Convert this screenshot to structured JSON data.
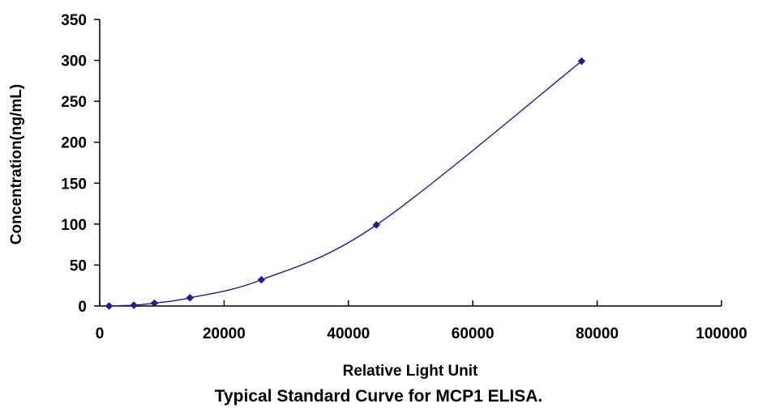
{
  "caption": "Typical Standard Curve for MCP1 ELISA.",
  "colors": {
    "series": "#1f1f8c",
    "axis": "#000000",
    "background": "#ffffff"
  },
  "chart_data": {
    "type": "scatter",
    "title": "",
    "xlabel": "Relative Light Unit",
    "ylabel": "Concentration(ng/mL)",
    "xlim": [
      0,
      100000
    ],
    "ylim": [
      0,
      350
    ],
    "x_ticks": [
      0,
      20000,
      40000,
      60000,
      80000,
      100000
    ],
    "y_ticks": [
      0,
      50,
      100,
      150,
      200,
      250,
      300,
      350
    ],
    "x_tick_labels": [
      "0",
      "20000",
      "40000",
      "60000",
      "80000",
      "100000"
    ],
    "y_tick_labels": [
      "0",
      "50",
      "100",
      "150",
      "200",
      "250",
      "300",
      "350"
    ],
    "grid": false,
    "legend": "none",
    "series": [
      {
        "marker": "diamond",
        "line": "smooth",
        "x": [
          1500,
          5500,
          8800,
          14500,
          26000,
          44500,
          77500
        ],
        "y": [
          0,
          1,
          3.5,
          10,
          32,
          99,
          299
        ]
      }
    ]
  }
}
